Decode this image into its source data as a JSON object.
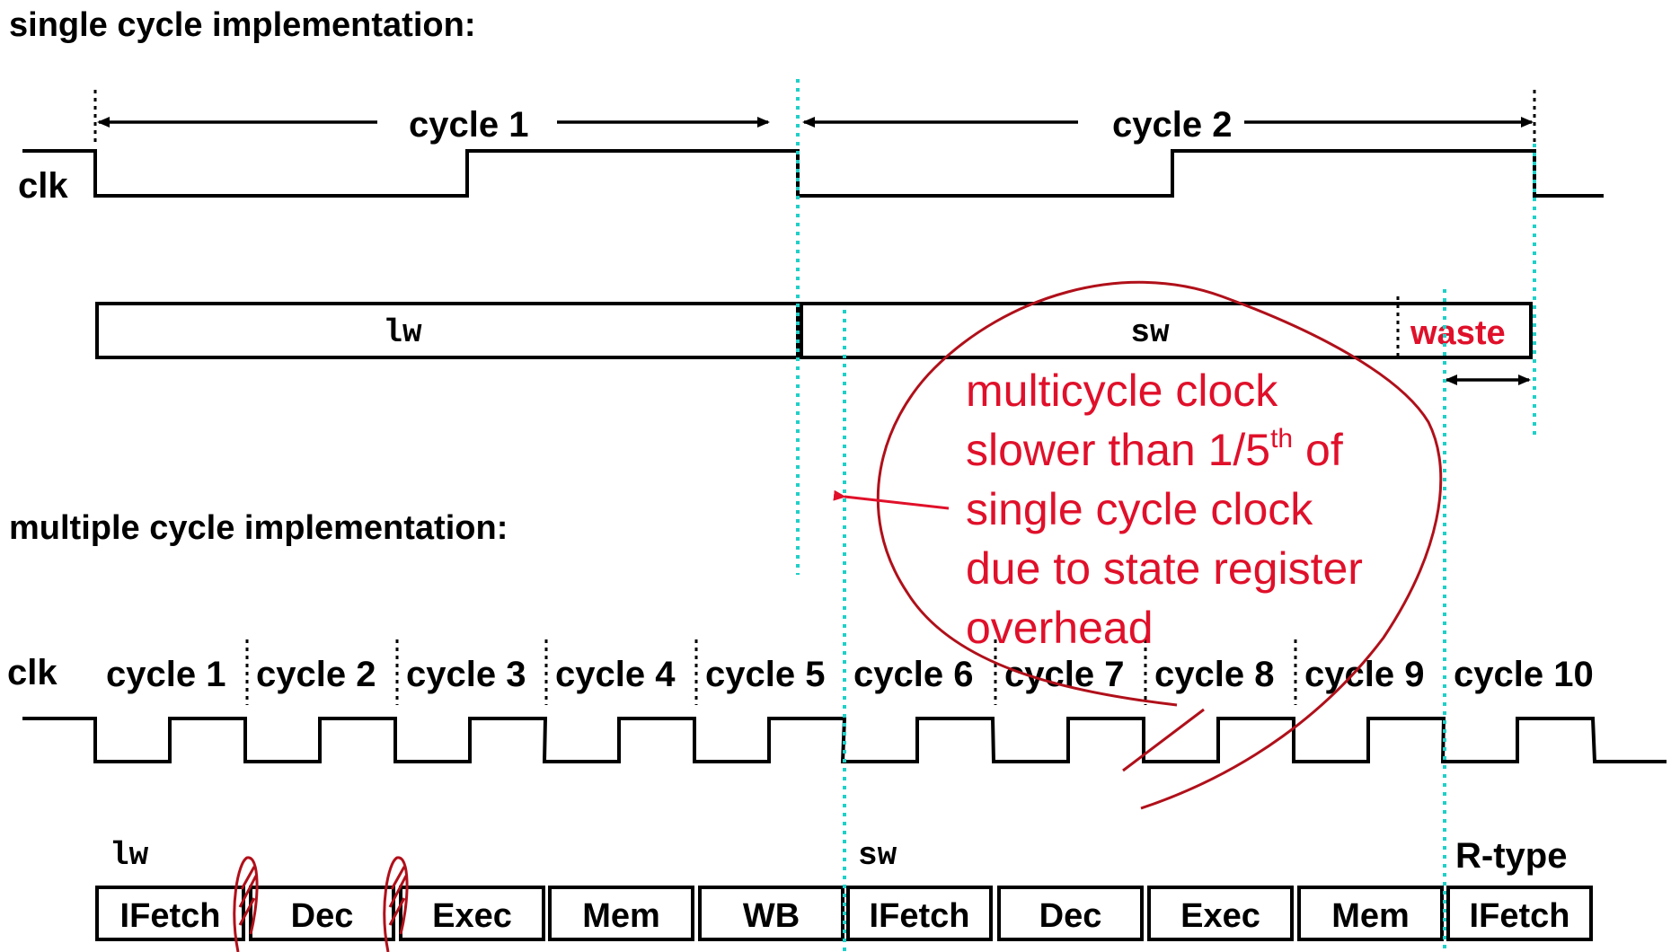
{
  "single": {
    "heading": "single cycle implementation:",
    "clk_label": "clk",
    "cycle1": "cycle 1",
    "cycle2": "cycle 2",
    "instr_lw": "lw",
    "instr_sw": "sw",
    "waste": "waste"
  },
  "multiple": {
    "heading": "multiple cycle implementation:",
    "clk_label": "clk",
    "cycles": [
      "cycle 1",
      "cycle 2",
      "cycle 3",
      "cycle 4",
      "cycle 5",
      "cycle 6",
      "cycle 7",
      "cycle 8",
      "cycle 9",
      "cycle 10"
    ],
    "instr_lw": "lw",
    "instr_sw": "sw",
    "instr_rtype": "R-type",
    "stages": [
      "IFetch",
      "Dec",
      "Exec",
      "Mem",
      "WB",
      "IFetch",
      "Dec",
      "Exec",
      "Mem",
      "IFetch"
    ]
  },
  "annotation": {
    "lines": [
      "multicycle clock",
      "slower than 1/5",
      "single cycle clock",
      "due to state register",
      "overhead"
    ],
    "superscript": "th",
    "line2_tail": " of",
    "color": "#e0102a"
  },
  "colors": {
    "teal_guides": "#1fd0c8",
    "ink": "#000000",
    "red_marks": "#b0101a"
  }
}
